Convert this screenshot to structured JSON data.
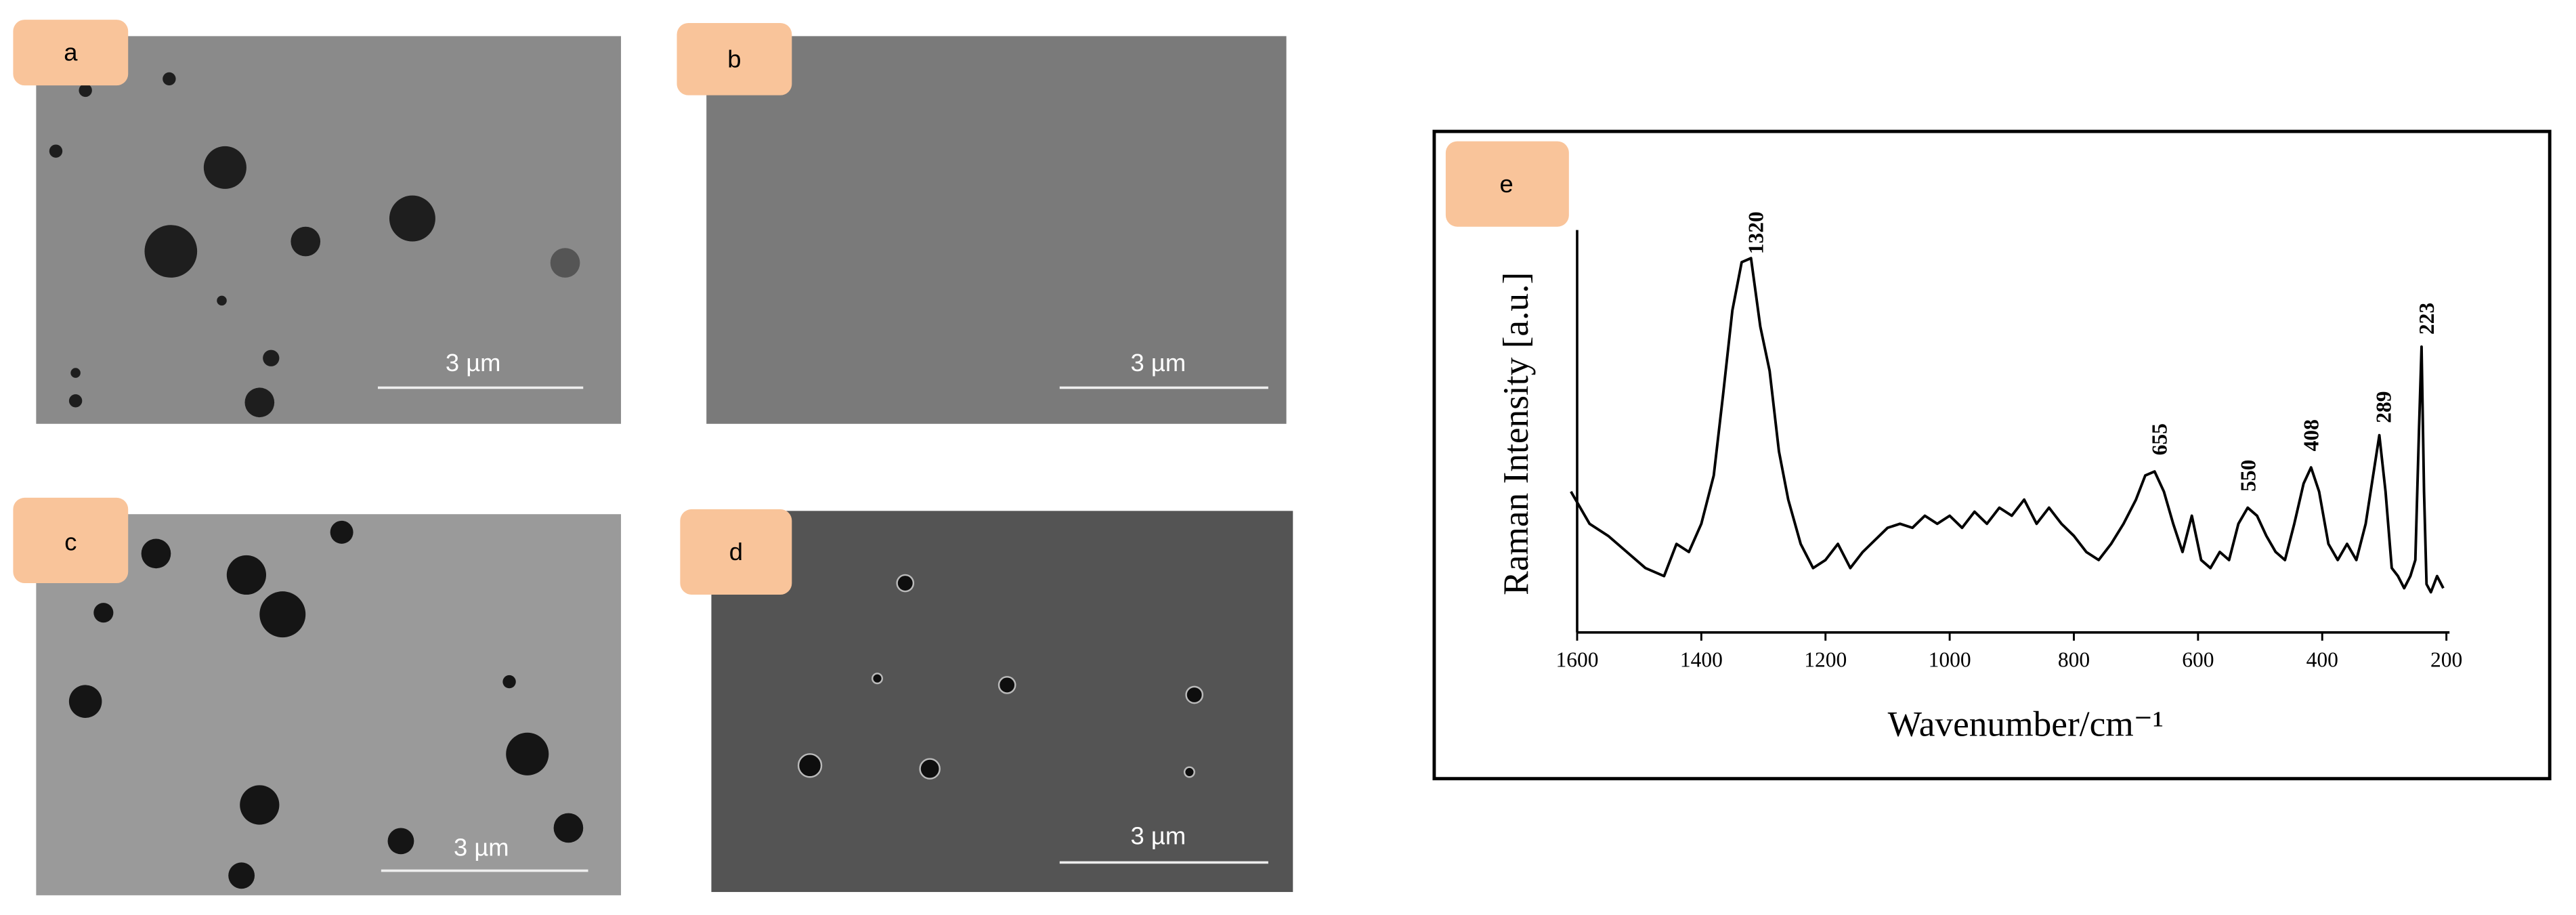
{
  "panels": [
    {
      "label": "a",
      "scale_bar": "3 µm"
    },
    {
      "label": "b",
      "scale_bar": "3 µm"
    },
    {
      "label": "c",
      "scale_bar": "3 µm"
    },
    {
      "label": "d",
      "scale_bar": "3 µm"
    },
    {
      "label": "e"
    }
  ],
  "chart_data": {
    "type": "line",
    "x_label": "Wavenumber/cm⁻¹",
    "y_label": "Raman Intensity [a.u.]",
    "color": "#000000",
    "x": [
      1610,
      1580,
      1550,
      1520,
      1490,
      1460,
      1440,
      1420,
      1400,
      1380,
      1365,
      1350,
      1335,
      1320,
      1305,
      1290,
      1275,
      1260,
      1240,
      1220,
      1200,
      1180,
      1160,
      1140,
      1120,
      1100,
      1080,
      1060,
      1040,
      1020,
      1000,
      980,
      960,
      940,
      920,
      900,
      880,
      860,
      840,
      820,
      800,
      780,
      760,
      740,
      720,
      700,
      685,
      670,
      655,
      640,
      625,
      610,
      595,
      580,
      565,
      550,
      535,
      520,
      505,
      490,
      475,
      460,
      445,
      430,
      418,
      405,
      390,
      375,
      360,
      345,
      330,
      318,
      308,
      298,
      288,
      278,
      268,
      258,
      250,
      244,
      240,
      236,
      232,
      225,
      215,
      205
    ],
    "values": [
      35,
      27,
      24,
      20,
      16,
      14,
      22,
      20,
      27,
      39,
      59,
      80,
      92,
      93,
      76,
      65,
      45,
      33,
      22,
      16,
      18,
      22,
      16,
      20,
      23,
      26,
      27,
      26,
      29,
      27,
      29,
      26,
      30,
      27,
      31,
      29,
      33,
      27,
      31,
      27,
      24,
      20,
      18,
      22,
      27,
      33,
      39,
      40,
      35,
      27,
      20,
      29,
      18,
      16,
      20,
      18,
      27,
      31,
      29,
      24,
      20,
      18,
      27,
      37,
      41,
      35,
      22,
      18,
      22,
      18,
      27,
      39,
      49,
      35,
      16,
      14,
      11,
      14,
      18,
      51,
      71,
      35,
      12,
      10,
      14,
      11
    ],
    "xlim": [
      1600,
      195
    ],
    "ylim": [
      0,
      100
    ],
    "xticks": [
      1600,
      1400,
      1200,
      1000,
      800,
      600,
      400,
      200
    ],
    "annotations": [
      {
        "text": "1320",
        "x": 1311,
        "y": 94
      },
      {
        "text": "655",
        "x": 661,
        "y": 44
      },
      {
        "text": "550",
        "x": 518,
        "y": 35
      },
      {
        "text": "408",
        "x": 417,
        "y": 45
      },
      {
        "text": "289",
        "x": 300,
        "y": 52
      },
      {
        "text": "223",
        "x": 231,
        "y": 74
      }
    ]
  }
}
